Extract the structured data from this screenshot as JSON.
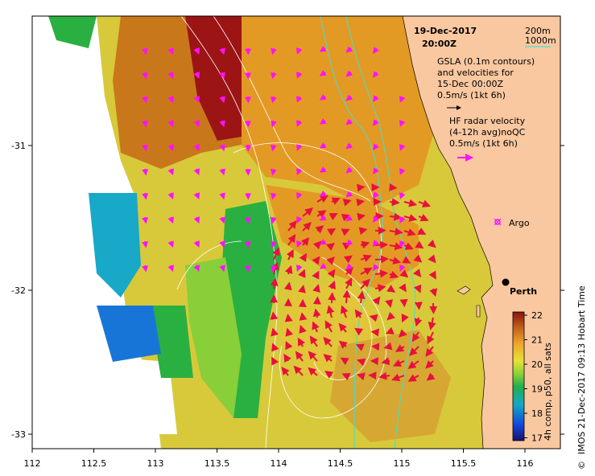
{
  "header": {
    "date": "19-Dec-2017",
    "time": "20:00Z"
  },
  "contour_legend": {
    "shallow": "200m",
    "deep": "1000m"
  },
  "gsla": {
    "line1": "GSLA (0.1m contours)",
    "line2": "and velocities for",
    "line3": "15-Dec 00:00Z",
    "scale": "0.5m/s (1kt 6h)"
  },
  "hf_radar": {
    "line1": "HF radar velocity",
    "line2": "(4-12h avg)noQC",
    "scale": "0.5m/s (1kt 6h)"
  },
  "places": {
    "argo": "Argo",
    "city": "Perth"
  },
  "x_axis": {
    "ticks": [
      "112",
      "112.5",
      "113",
      "113.5",
      "114",
      "114.5",
      "115",
      "115.5",
      "116"
    ]
  },
  "y_axis": {
    "ticks": [
      "-31",
      "-32",
      "-33"
    ]
  },
  "colorbar": {
    "title": "4h comp, p50, all sats",
    "ticks": [
      "22",
      "21",
      "20",
      "19",
      "18",
      "17"
    ],
    "stops": [
      "#1a0f6e",
      "#0f47d8",
      "#15a8c8",
      "#1fb04a",
      "#8cd23a",
      "#e6e233",
      "#f0a22a",
      "#c0601a",
      "#8c1010"
    ]
  },
  "credit": "IMOS 21-Dec-2017 09:13 Hobart Time",
  "copyright": "©",
  "colors": {
    "land": "#fac8a0",
    "hf_arrow": "#e8103c",
    "gsla_arrow": "#ff10ff",
    "bathy": "#40e0d0",
    "contour": "#ffffff"
  }
}
